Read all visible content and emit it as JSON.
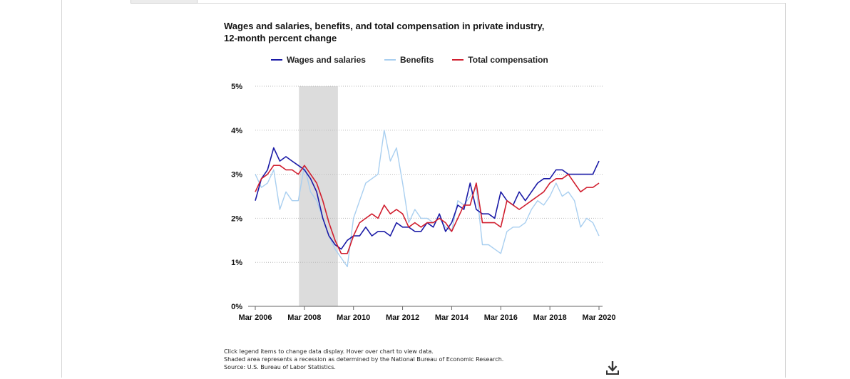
{
  "chart": {
    "title_line1": "Wages and salaries, benefits, and total compensation in private industry,",
    "title_line2": "12-month percent change"
  },
  "legend": [
    {
      "label": "Wages and salaries",
      "color": "#1a1aa6"
    },
    {
      "label": "Benefits",
      "color": "#a9cff0"
    },
    {
      "label": "Total compensation",
      "color": "#d11f2f"
    }
  ],
  "notes": [
    "Click legend items to change data display. Hover over chart to view data.",
    "Shaded area represents a recession as determined by the National Bureau of Economic Research.",
    "Source: U.S. Bureau of Labor Statistics."
  ],
  "download": {
    "icon": "download-icon"
  },
  "chart_data": {
    "type": "line",
    "title": "Wages and salaries, benefits, and total compensation in private industry, 12-month percent change",
    "xlabel": "",
    "ylabel": "",
    "x": [
      "Mar 2006",
      "Jun 2006",
      "Sep 2006",
      "Dec 2006",
      "Mar 2007",
      "Jun 2007",
      "Sep 2007",
      "Dec 2007",
      "Mar 2008",
      "Jun 2008",
      "Sep 2008",
      "Dec 2008",
      "Mar 2009",
      "Jun 2009",
      "Sep 2009",
      "Dec 2009",
      "Mar 2010",
      "Jun 2010",
      "Sep 2010",
      "Dec 2010",
      "Mar 2011",
      "Jun 2011",
      "Sep 2011",
      "Dec 2011",
      "Mar 2012",
      "Jun 2012",
      "Sep 2012",
      "Dec 2012",
      "Mar 2013",
      "Jun 2013",
      "Sep 2013",
      "Dec 2013",
      "Mar 2014",
      "Jun 2014",
      "Sep 2014",
      "Dec 2014",
      "Mar 2015",
      "Jun 2015",
      "Sep 2015",
      "Dec 2015",
      "Mar 2016",
      "Jun 2016",
      "Sep 2016",
      "Dec 2016",
      "Mar 2017",
      "Jun 2017",
      "Sep 2017",
      "Dec 2017",
      "Mar 2018",
      "Jun 2018",
      "Sep 2018",
      "Dec 2018",
      "Mar 2019",
      "Jun 2019",
      "Sep 2019",
      "Dec 2019",
      "Mar 2020"
    ],
    "x_tick_labels": [
      "Mar 2006",
      "Mar 2008",
      "Mar 2010",
      "Mar 2012",
      "Mar 2014",
      "Mar 2016",
      "Mar 2018",
      "Mar 2020"
    ],
    "y_tick_labels": [
      "0%",
      "1%",
      "2%",
      "3%",
      "4%",
      "5%"
    ],
    "ylim": [
      0,
      5
    ],
    "grid": "horizontal dotted",
    "legend_position": "top",
    "shaded_region": {
      "from": "Dec 2007",
      "to": "Jun 2009",
      "color": "#dcdcdc"
    },
    "series": [
      {
        "name": "Wages and salaries",
        "color": "#1a1aa6",
        "values": [
          2.4,
          2.9,
          3.1,
          3.6,
          3.3,
          3.4,
          3.3,
          3.2,
          3.1,
          2.9,
          2.6,
          2.0,
          1.6,
          1.4,
          1.3,
          1.5,
          1.6,
          1.6,
          1.8,
          1.6,
          1.7,
          1.7,
          1.6,
          1.9,
          1.8,
          1.8,
          1.7,
          1.7,
          1.9,
          1.8,
          2.1,
          1.7,
          1.9,
          2.3,
          2.2,
          2.8,
          2.2,
          2.1,
          2.1,
          2.0,
          2.6,
          2.4,
          2.3,
          2.6,
          2.4,
          2.6,
          2.8,
          2.9,
          2.9,
          3.1,
          3.1,
          3.0,
          3.0,
          3.0,
          3.0,
          3.0,
          3.3
        ]
      },
      {
        "name": "Benefits",
        "color": "#a9cff0",
        "values": [
          3.0,
          2.7,
          2.8,
          3.1,
          2.2,
          2.6,
          2.4,
          2.4,
          3.2,
          2.6,
          2.4,
          2.0,
          1.6,
          1.3,
          1.1,
          0.9,
          2.0,
          2.4,
          2.8,
          2.9,
          3.0,
          4.0,
          3.3,
          3.6,
          2.8,
          1.9,
          2.2,
          2.0,
          2.0,
          1.9,
          2.0,
          1.8,
          1.7,
          2.4,
          2.3,
          2.5,
          2.7,
          1.4,
          1.4,
          1.3,
          1.2,
          1.7,
          1.8,
          1.8,
          1.9,
          2.2,
          2.4,
          2.3,
          2.5,
          2.8,
          2.5,
          2.6,
          2.4,
          1.8,
          2.0,
          1.9,
          1.6
        ]
      },
      {
        "name": "Total compensation",
        "color": "#d11f2f",
        "values": [
          2.6,
          2.9,
          3.0,
          3.2,
          3.2,
          3.1,
          3.1,
          3.0,
          3.2,
          3.0,
          2.8,
          2.4,
          1.9,
          1.5,
          1.2,
          1.2,
          1.6,
          1.9,
          2.0,
          2.1,
          2.0,
          2.3,
          2.1,
          2.2,
          2.1,
          1.8,
          1.9,
          1.8,
          1.9,
          1.9,
          2.0,
          1.9,
          1.7,
          2.0,
          2.3,
          2.3,
          2.8,
          1.9,
          1.9,
          1.9,
          1.8,
          2.4,
          2.3,
          2.2,
          2.3,
          2.4,
          2.5,
          2.6,
          2.8,
          2.9,
          2.9,
          3.0,
          2.8,
          2.6,
          2.7,
          2.7,
          2.8
        ]
      }
    ]
  }
}
